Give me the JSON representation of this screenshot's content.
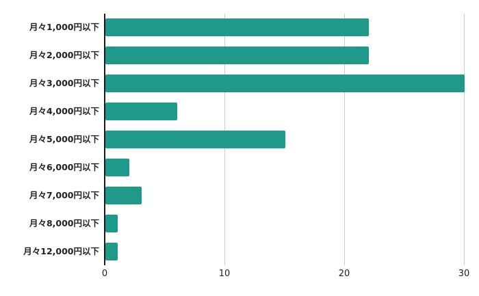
{
  "chart_data": {
    "type": "bar",
    "orientation": "horizontal",
    "categories": [
      "月々1,000円以下",
      "月々2,000円以下",
      "月々3,000円以下",
      "月々4,000円以下",
      "月々5,000円以下",
      "月々6,000円以下",
      "月々7,000円以下",
      "月々8,000円以下",
      "月々12,000円以下"
    ],
    "values": [
      22,
      22,
      30,
      6,
      15,
      2,
      3,
      1,
      1
    ],
    "title": "",
    "xlabel": "",
    "ylabel": "",
    "xlim": [
      0,
      30
    ],
    "xticks": [
      0,
      10,
      20,
      30
    ],
    "grid": true,
    "legend": "none",
    "colors": {
      "bar": "#1f9a8a",
      "gridline": "#cccccc",
      "axis": "#1a1a1a",
      "text": "#212121",
      "background": "#ffffff"
    }
  }
}
